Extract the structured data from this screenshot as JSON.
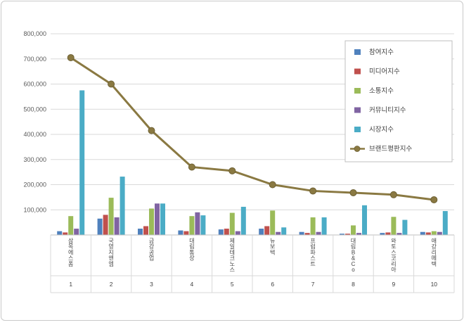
{
  "chart_data": {
    "type": "combo-bar-line",
    "title": "",
    "categories": [
      "삼목에스폼",
      "국영지앤엠",
      "금강공업",
      "대림통상",
      "제일테크노스",
      "뉴보텍",
      "프럼파스트",
      "대림B&Co",
      "와토스코리아",
      "애강리메텍"
    ],
    "category_ranks": [
      "1",
      "2",
      "3",
      "4",
      "5",
      "6",
      "7",
      "8",
      "9",
      "10"
    ],
    "bar_series": [
      {
        "name": "참여지수",
        "color": "#4F81BD",
        "values": [
          15000,
          65000,
          25000,
          18000,
          22000,
          25000,
          12000,
          5000,
          8000,
          12000
        ]
      },
      {
        "name": "미디어지수",
        "color": "#C0504D",
        "values": [
          10000,
          80000,
          35000,
          15000,
          25000,
          35000,
          8000,
          5000,
          10000,
          10000
        ]
      },
      {
        "name": "소통지수",
        "color": "#9BBB59",
        "values": [
          75000,
          148000,
          105000,
          75000,
          88000,
          97000,
          70000,
          38000,
          72000,
          15000
        ]
      },
      {
        "name": "커뮤니티지수",
        "color": "#8064A2",
        "values": [
          25000,
          70000,
          125000,
          90000,
          15000,
          12000,
          12000,
          8000,
          8000,
          12000
        ]
      },
      {
        "name": "시장지수",
        "color": "#4BACC6",
        "values": [
          575000,
          232000,
          125000,
          78000,
          112000,
          30000,
          70000,
          118000,
          60000,
          95000
        ]
      }
    ],
    "line_series": {
      "name": "브랜드평판지수",
      "color": "#8A7942",
      "values": [
        705000,
        600000,
        415000,
        270000,
        255000,
        200000,
        175000,
        168000,
        160000,
        140000
      ]
    },
    "y_axis": {
      "min": 0,
      "max": 800000,
      "step": 100000,
      "tick_labels": [
        "100,000",
        "200,000",
        "300,000",
        "400,000",
        "500,000",
        "600,000",
        "700,000",
        "800,000"
      ]
    },
    "grid": true,
    "legend_position": "top-right",
    "colors": {
      "grid": "#d9d9d9",
      "axis": "#bfbfbf",
      "tick_text": "#595959",
      "label_text": "#404040",
      "legend_border": "#bfbfbf"
    }
  }
}
